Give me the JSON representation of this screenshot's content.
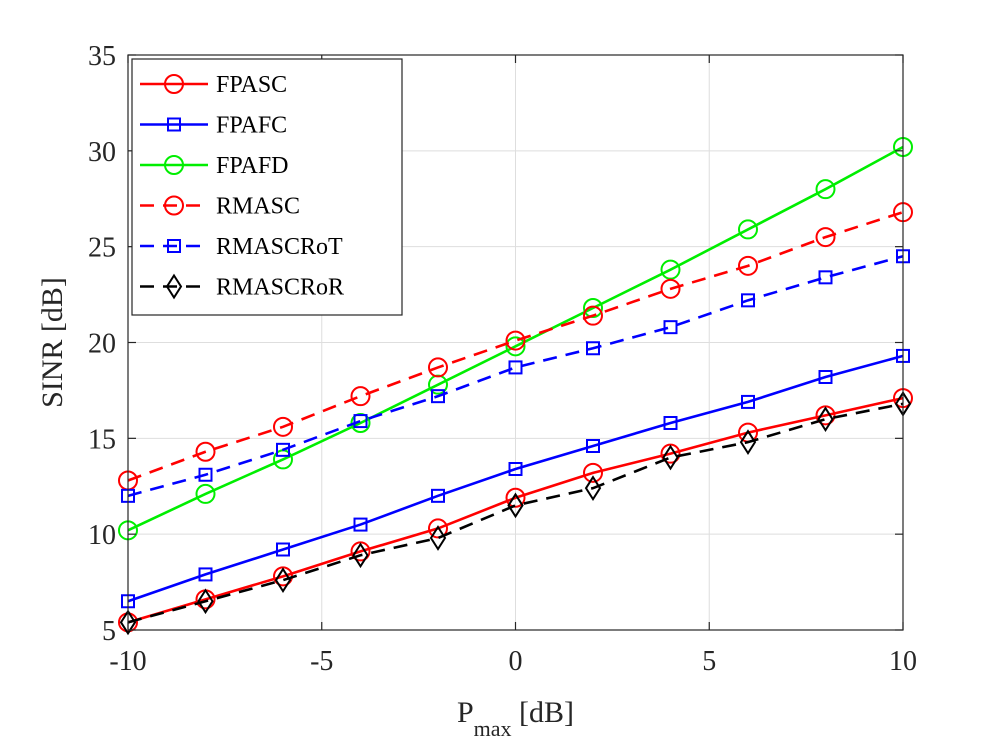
{
  "chart_data": {
    "type": "line",
    "title": "",
    "xlabel": "P",
    "xlabel_sub": "max",
    "xlabel_suffix": " [dB]",
    "ylabel": "SINR [dB]",
    "xlim": [
      -10,
      10
    ],
    "ylim": [
      5,
      35
    ],
    "xticks": [
      -10,
      -5,
      0,
      5,
      10
    ],
    "yticks": [
      5,
      10,
      15,
      20,
      25,
      30,
      35
    ],
    "xtick_labels": [
      "-10",
      "-5",
      "0",
      "5",
      "10"
    ],
    "ytick_labels": [
      "5",
      "10",
      "15",
      "20",
      "25",
      "30",
      "35"
    ],
    "grid": true,
    "legend_position": "top-left",
    "x": [
      -10,
      -8,
      -6,
      -4,
      -2,
      0,
      2,
      4,
      6,
      8,
      10
    ],
    "series": [
      {
        "name": "FPASC",
        "color": "#ff0000",
        "dash": "solid",
        "marker": "circle",
        "values": [
          5.4,
          6.6,
          7.8,
          9.1,
          10.3,
          11.9,
          13.2,
          14.2,
          15.3,
          16.2,
          17.1
        ]
      },
      {
        "name": "FPAFC",
        "color": "#0000ff",
        "dash": "solid",
        "marker": "square",
        "values": [
          6.5,
          7.9,
          9.2,
          10.5,
          12.0,
          13.4,
          14.6,
          15.8,
          16.9,
          18.2,
          19.3
        ]
      },
      {
        "name": "FPAFD",
        "color": "#00ee00",
        "dash": "solid",
        "marker": "circle",
        "values": [
          10.2,
          12.1,
          13.9,
          15.8,
          17.8,
          19.8,
          21.8,
          23.8,
          25.9,
          28.0,
          30.2
        ]
      },
      {
        "name": "RMASC",
        "color": "#ff0000",
        "dash": "dashed",
        "marker": "circle",
        "values": [
          12.8,
          14.3,
          15.6,
          17.2,
          18.7,
          20.1,
          21.4,
          22.8,
          24.0,
          25.5,
          26.8
        ]
      },
      {
        "name": "RMASCRoT",
        "color": "#0000ff",
        "dash": "dashed",
        "marker": "square",
        "values": [
          12.0,
          13.1,
          14.4,
          15.9,
          17.2,
          18.7,
          19.7,
          20.8,
          22.2,
          23.4,
          24.5
        ]
      },
      {
        "name": "RMASCRoR",
        "color": "#000000",
        "dash": "dashed",
        "marker": "diamond",
        "values": [
          5.4,
          6.5,
          7.6,
          8.9,
          9.8,
          11.5,
          12.4,
          14.0,
          14.8,
          16.0,
          16.8
        ]
      }
    ]
  }
}
